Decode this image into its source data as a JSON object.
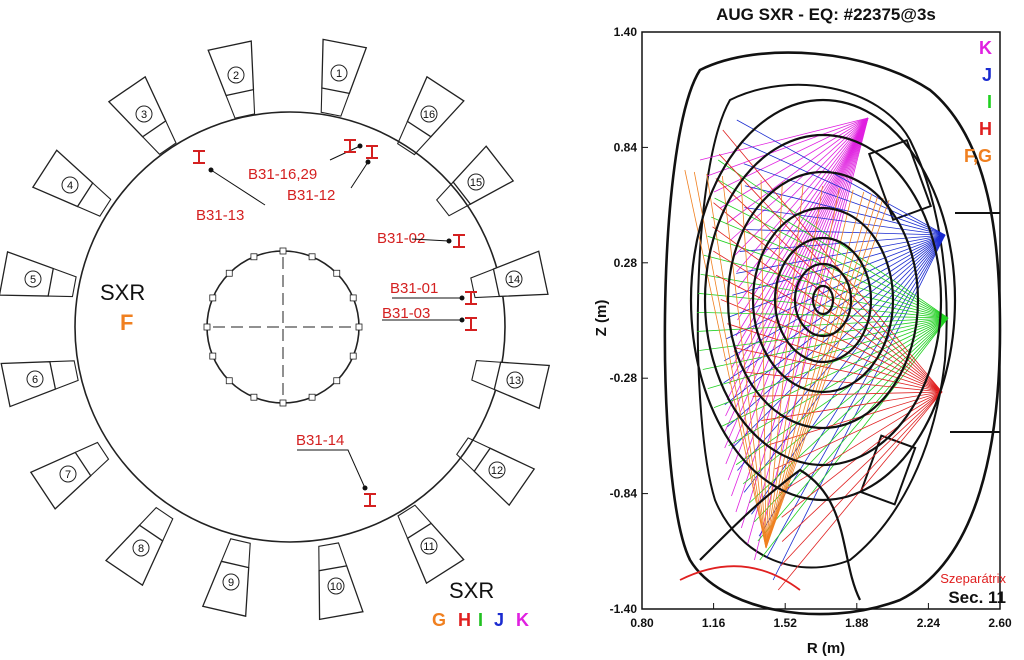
{
  "left": {
    "ports": [
      "1",
      "2",
      "3",
      "4",
      "5",
      "6",
      "7",
      "8",
      "9",
      "10",
      "11",
      "12",
      "13",
      "14",
      "15",
      "16"
    ],
    "diagnostic_labels": [
      "B31-13",
      "B31-16,29",
      "B31-12",
      "B31-02",
      "B31-01",
      "B31-03",
      "B31-14"
    ],
    "sxr_top": {
      "title": "SXR",
      "camera": "F"
    },
    "sxr_bottom": {
      "title": "SXR",
      "cameras": [
        {
          "letter": "G",
          "color": "#f08020"
        },
        {
          "letter": "H",
          "color": "#e02020"
        },
        {
          "letter": "I",
          "color": "#20c020"
        },
        {
          "letter": "J",
          "color": "#1a2bd0"
        },
        {
          "letter": "K",
          "color": "#e020e0"
        }
      ]
    }
  },
  "right": {
    "title": "AUG SXR - EQ: #22375@3s",
    "y_ticks": [
      "1.40",
      "0.84",
      "0.28",
      "-0.28",
      "-0.84",
      "-1.40"
    ],
    "x_ticks": [
      "0.80",
      "1.16",
      "1.52",
      "1.88",
      "2.24",
      "2.60"
    ],
    "xlabel": "R (m)",
    "ylabel": "Z (m)",
    "legend": [
      {
        "label": "K",
        "color": "#e020e0"
      },
      {
        "label": "J",
        "color": "#1a2bd0"
      },
      {
        "label": "I",
        "color": "#20d020"
      },
      {
        "label": "H",
        "color": "#e02020"
      },
      {
        "label": "F,G",
        "color": "#f08020"
      }
    ],
    "annotation": "Szeparátrix",
    "annotation_color": "#e02020",
    "section": "Sec. 11"
  }
}
